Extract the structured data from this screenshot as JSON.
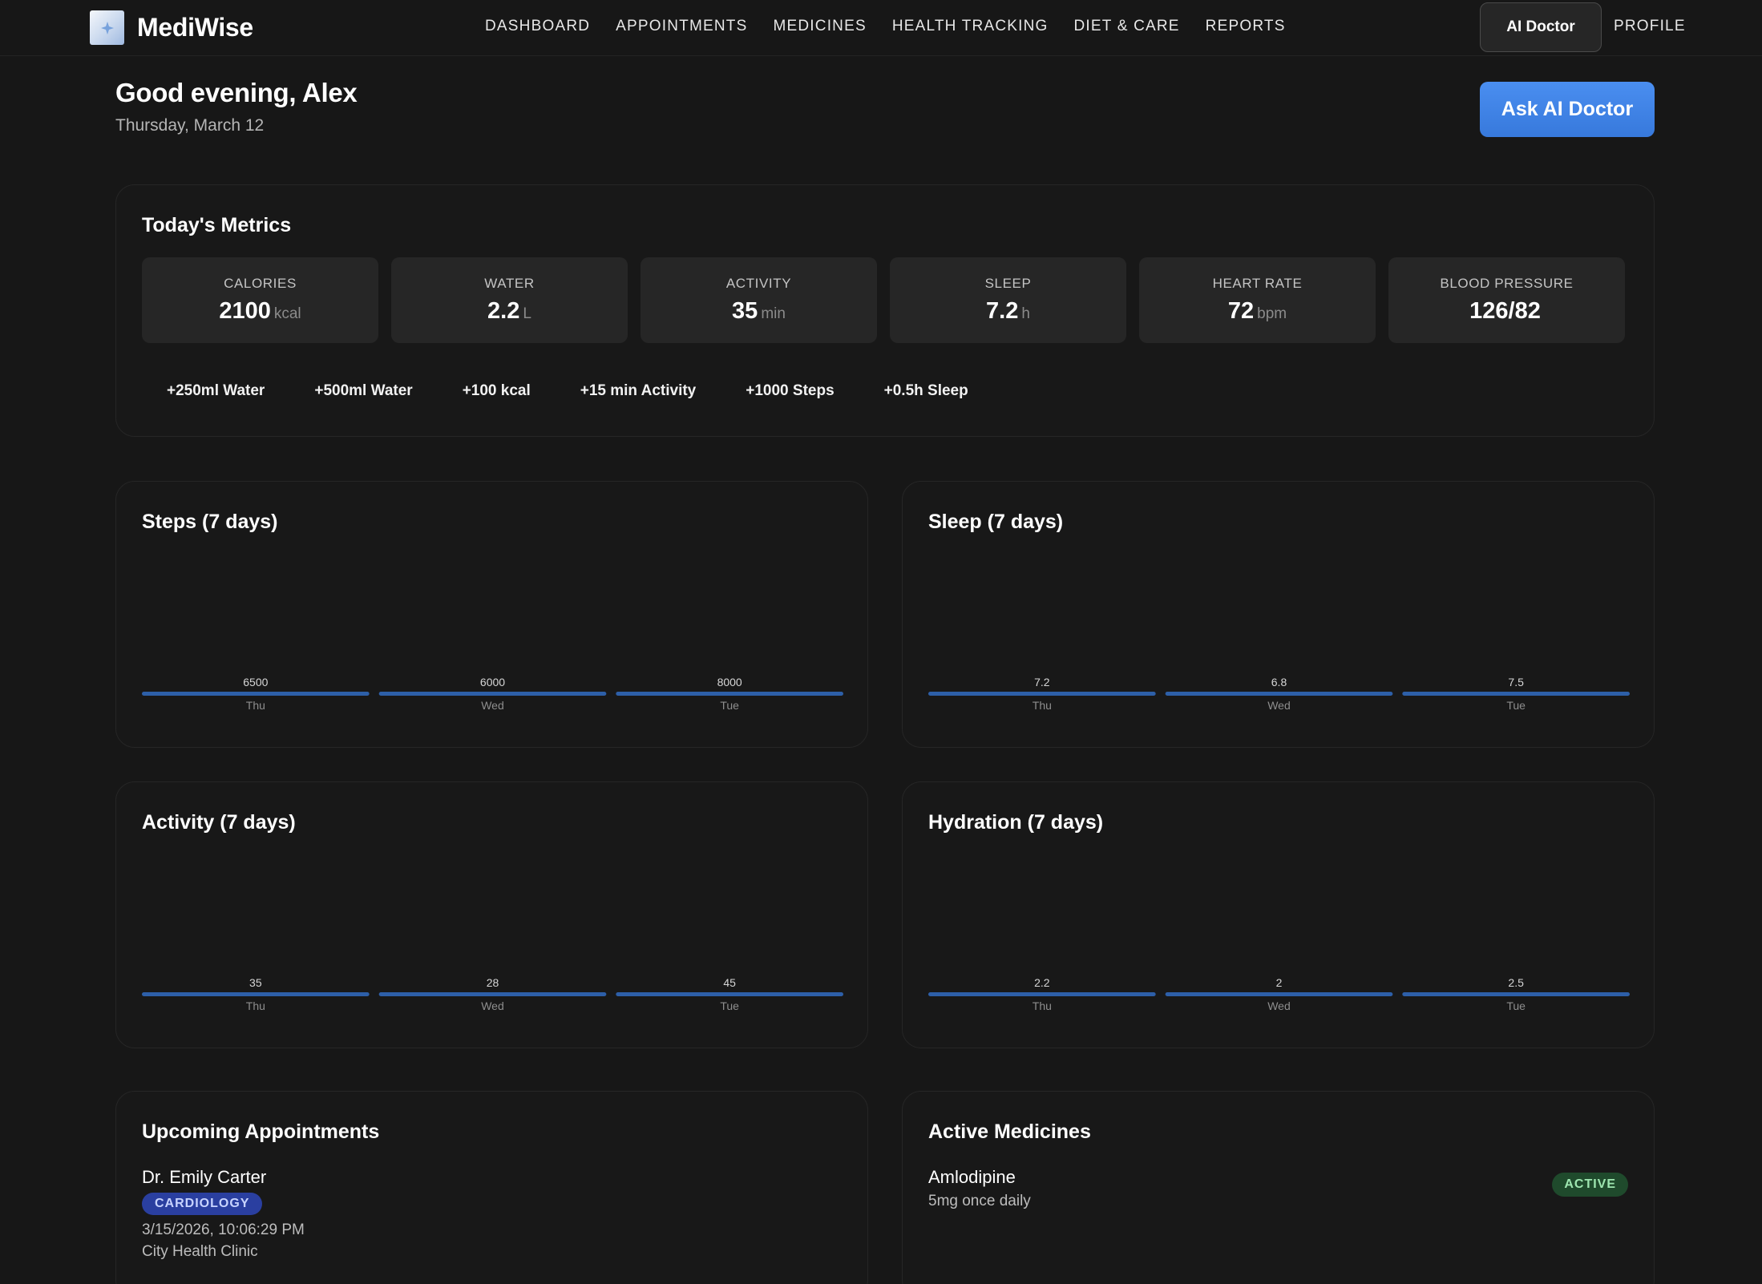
{
  "app": {
    "name": "MediWise"
  },
  "nav": {
    "links": [
      "DASHBOARD",
      "APPOINTMENTS",
      "MEDICINES",
      "HEALTH TRACKING",
      "DIET & CARE",
      "REPORTS"
    ],
    "ai_doctor_label": "AI Doctor",
    "profile_label": "PROFILE"
  },
  "greeting": {
    "title": "Good evening, Alex",
    "date": "Thursday, March 12",
    "ask_button": "Ask AI Doctor"
  },
  "metrics": {
    "title": "Today's Metrics",
    "tiles": [
      {
        "label": "CALORIES",
        "value": "2100",
        "unit": "kcal"
      },
      {
        "label": "WATER",
        "value": "2.2",
        "unit": "L"
      },
      {
        "label": "ACTIVITY",
        "value": "35",
        "unit": "min"
      },
      {
        "label": "SLEEP",
        "value": "7.2",
        "unit": "h"
      },
      {
        "label": "HEART RATE",
        "value": "72",
        "unit": "bpm"
      },
      {
        "label": "BLOOD PRESSURE",
        "value": "126/82",
        "unit": ""
      }
    ],
    "quick_actions": [
      "+250ml Water",
      "+500ml Water",
      "+100 kcal",
      "+15 min Activity",
      "+1000 Steps",
      "+0.5h Sleep"
    ]
  },
  "chart_data": [
    {
      "type": "bar",
      "title": "Steps (7 days)",
      "categories": [
        "Thu",
        "Wed",
        "Tue"
      ],
      "values": [
        6500,
        6000,
        8000
      ],
      "value_labels": [
        "6500",
        "6000",
        "8000"
      ]
    },
    {
      "type": "bar",
      "title": "Sleep (7 days)",
      "categories": [
        "Thu",
        "Wed",
        "Tue"
      ],
      "values": [
        7.2,
        6.8,
        7.5
      ],
      "value_labels": [
        "7.2",
        "6.8",
        "7.5"
      ]
    },
    {
      "type": "bar",
      "title": "Activity (7 days)",
      "categories": [
        "Thu",
        "Wed",
        "Tue"
      ],
      "values": [
        35,
        28,
        45
      ],
      "value_labels": [
        "35",
        "28",
        "45"
      ]
    },
    {
      "type": "bar",
      "title": "Hydration (7 days)",
      "categories": [
        "Thu",
        "Wed",
        "Tue"
      ],
      "values": [
        2.2,
        2,
        2.5
      ],
      "value_labels": [
        "2.2",
        "2",
        "2.5"
      ]
    }
  ],
  "appointments": {
    "title": "Upcoming Appointments",
    "items": [
      {
        "doctor": "Dr. Emily Carter",
        "specialty": "CARDIOLOGY",
        "datetime": "3/15/2026, 10:06:29 PM",
        "location": "City Health Clinic"
      }
    ]
  },
  "medicines": {
    "title": "Active Medicines",
    "items": [
      {
        "name": "Amlodipine",
        "dose": "5mg once daily",
        "status": "ACTIVE"
      }
    ]
  },
  "colors": {
    "background": "#171717",
    "accent_blue": "#3779dc",
    "bar_blue": "#2d5fa8",
    "tag_blue": "#2a3fa0",
    "status_green": "#1f4a2c"
  }
}
